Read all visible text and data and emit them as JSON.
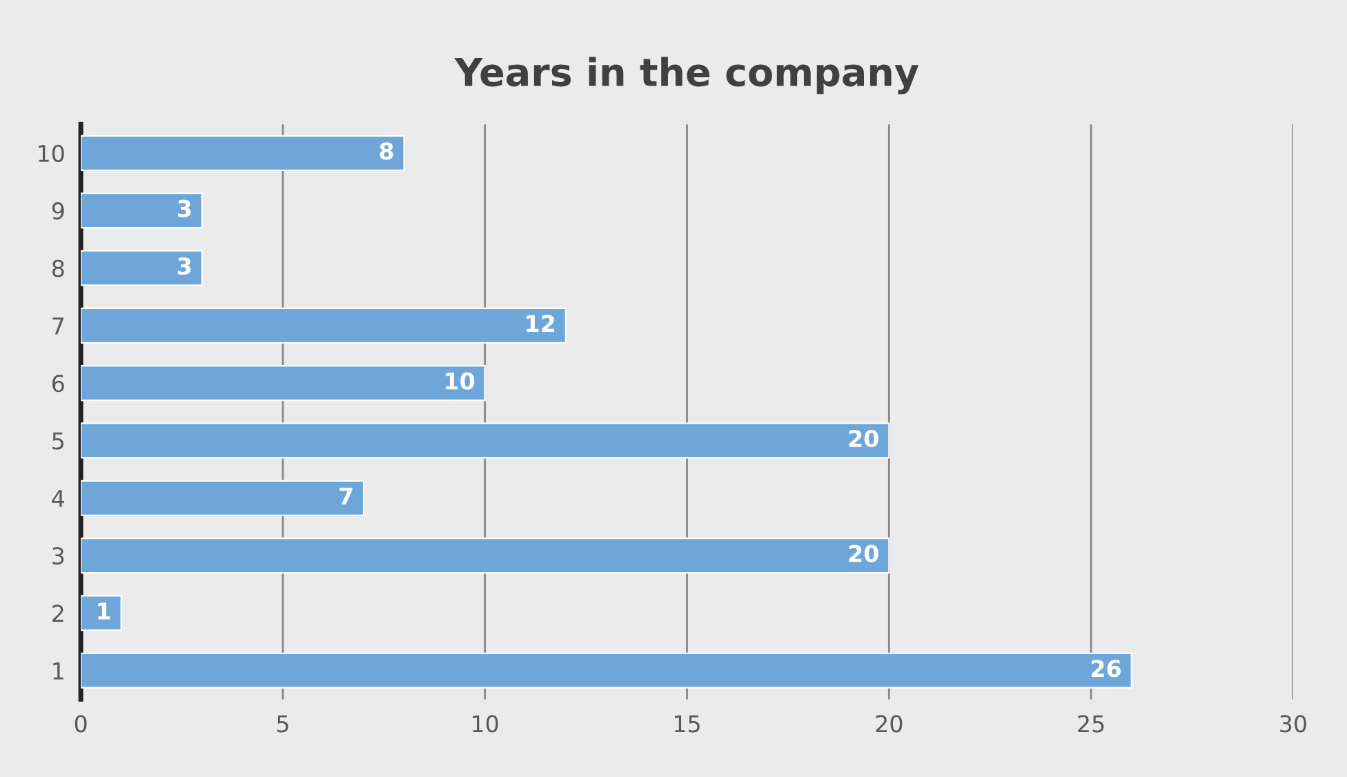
{
  "chart_data": {
    "type": "bar",
    "orientation": "horizontal",
    "title": "Years in the company",
    "categories": [
      "10",
      "9",
      "8",
      "7",
      "6",
      "5",
      "4",
      "3",
      "2",
      "1"
    ],
    "values": [
      8,
      3,
      3,
      12,
      10,
      20,
      7,
      20,
      1,
      26
    ],
    "color": "#6fa6da",
    "xlim": [
      0,
      30
    ],
    "xticks": [
      0,
      5,
      10,
      15,
      20,
      25,
      30
    ],
    "grid": "x",
    "data_labels": true,
    "legend": false
  }
}
